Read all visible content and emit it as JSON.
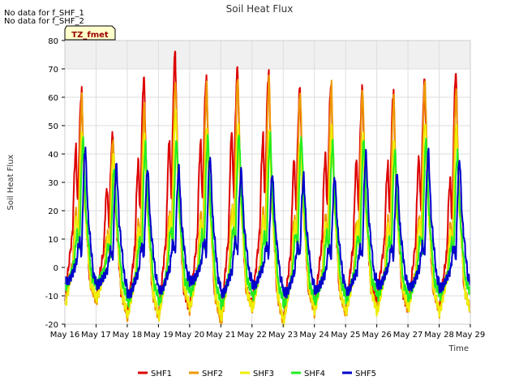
{
  "notes": [
    "No data for f_SHF_1",
    "No data for f_SHF_2"
  ],
  "badge": "TZ_fmet",
  "chart_data": {
    "type": "line",
    "title": "Soil Heat Flux",
    "xlabel": "Time",
    "ylabel": "Soil Heat Flux",
    "ylim": [
      -20,
      80
    ],
    "yticks": [
      -20,
      -10,
      0,
      10,
      20,
      30,
      40,
      50,
      60,
      70,
      80
    ],
    "xlim": [
      16,
      29
    ],
    "xticks": [
      16,
      17,
      18,
      19,
      20,
      21,
      22,
      23,
      24,
      25,
      26,
      27,
      28,
      29
    ],
    "xtick_labels": [
      "May 16",
      "May 17",
      "May 18",
      "May 19",
      "May 20",
      "May 21",
      "May 22",
      "May 23",
      "May 24",
      "May 25",
      "May 26",
      "May 27",
      "May 28",
      "May 29"
    ],
    "grid": true,
    "legend_position": "bottom",
    "series": [
      {
        "name": "SHF1",
        "color": "#dd0000",
        "min": [
          -11,
          -11,
          -17,
          -17,
          -15,
          -19,
          -14,
          -19,
          -15,
          -16,
          -12,
          -15,
          -15
        ],
        "pre": [
          42,
          28,
          37,
          45,
          44,
          48,
          46,
          38,
          40,
          38,
          36,
          39,
          31
        ],
        "peak": [
          62,
          47,
          67,
          76,
          67,
          70,
          69,
          63,
          65,
          63,
          62,
          66,
          69
        ],
        "phase": 0.0
      },
      {
        "name": "SHF2",
        "color": "#ee9900",
        "min": [
          -12,
          -12,
          -18,
          -18,
          -15,
          -20,
          -15,
          -20,
          -16,
          -17,
          -15,
          -15,
          -16
        ],
        "pre": [
          20,
          12,
          16,
          20,
          19,
          22,
          20,
          18,
          18,
          17,
          17,
          18,
          15
        ],
        "peak": [
          60,
          45,
          57,
          66,
          64,
          67,
          67,
          62,
          64,
          63,
          60,
          66,
          62
        ],
        "phase": 0.01
      },
      {
        "name": "SHF3",
        "color": "#eeee00",
        "min": [
          -13,
          -11,
          -17,
          -17,
          -14,
          -18,
          -15,
          -19,
          -15,
          -16,
          -16,
          -14,
          -16
        ],
        "pre": [
          18,
          10,
          14,
          18,
          17,
          20,
          18,
          16,
          16,
          15,
          15,
          16,
          13
        ],
        "peak": [
          47,
          40,
          47,
          55,
          48,
          50,
          48,
          45,
          49,
          47,
          44,
          51,
          49
        ],
        "phase": 0.02
      },
      {
        "name": "SHF4",
        "color": "#22ee22",
        "min": [
          -7,
          -6,
          -12,
          -12,
          -9,
          -13,
          -10,
          -13,
          -12,
          -11,
          -10,
          -11,
          -10
        ],
        "pre": [
          12,
          8,
          10,
          14,
          12,
          14,
          12,
          12,
          12,
          11,
          10,
          11,
          9
        ],
        "peak": [
          45,
          35,
          43,
          45,
          46,
          47,
          46,
          46,
          44,
          45,
          41,
          45,
          40
        ],
        "phase": 0.05
      },
      {
        "name": "SHF5",
        "color": "#0000cc",
        "min": [
          -5,
          -6,
          -9,
          -8,
          -5,
          -9,
          -6,
          -9,
          -8,
          -8,
          -6,
          -7,
          -7
        ],
        "pre": [
          9,
          6,
          8,
          9,
          9,
          10,
          8,
          8,
          7,
          7,
          7,
          8,
          7
        ],
        "peak": [
          42,
          36,
          35,
          35,
          39,
          34,
          33,
          32,
          32,
          40,
          33,
          41,
          38
        ],
        "phase": 0.12
      }
    ]
  }
}
